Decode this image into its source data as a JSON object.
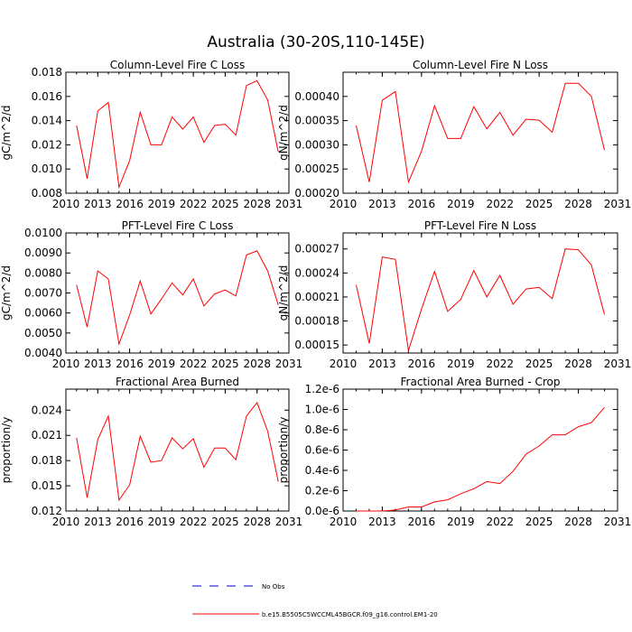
{
  "title": "Australia (30-20S,110-145E)",
  "colors": {
    "series": "#ff0000",
    "obs": "#0000cc",
    "axis": "#000000"
  },
  "legend": {
    "position": "bottom-center",
    "items": [
      {
        "label": "No Obs",
        "style": "dashed",
        "color": "#0000cc"
      },
      {
        "label": "b.e15.B5505C5WCCML45BGCR.f09_g16.control.EM1-20",
        "style": "solid",
        "color": "#ff0000"
      }
    ]
  },
  "chart_data": [
    {
      "type": "line",
      "title": "Column-Level Fire C Loss",
      "ylabel": "gC/m^2/d",
      "xlim": [
        2010,
        2031
      ],
      "ylim": [
        0.008,
        0.018
      ],
      "xticks": [
        2010,
        2013,
        2016,
        2019,
        2022,
        2025,
        2028,
        2031
      ],
      "yticks": [
        0.008,
        0.01,
        0.012,
        0.014,
        0.016,
        0.018
      ],
      "ytick_labels": [
        "0.008",
        "0.010",
        "0.012",
        "0.014",
        "0.016",
        "0.018"
      ],
      "x": [
        2011,
        2012,
        2013,
        2014,
        2015,
        2016,
        2017,
        2018,
        2019,
        2020,
        2021,
        2022,
        2023,
        2024,
        2025,
        2026,
        2027,
        2028,
        2029,
        2030
      ],
      "series": [
        {
          "name": "b.e15.B5505C5WCCML45BGCR.f09_g16.control.EM1-20",
          "values": [
            0.0136,
            0.0092,
            0.0148,
            0.0155,
            0.0085,
            0.0107,
            0.0147,
            0.012,
            0.012,
            0.0143,
            0.0133,
            0.0143,
            0.0122,
            0.0136,
            0.0137,
            0.0128,
            0.0169,
            0.0173,
            0.0157,
            0.0114
          ]
        }
      ]
    },
    {
      "type": "line",
      "title": "Column-Level Fire N Loss",
      "ylabel": "gN/m^2/d",
      "xlim": [
        2010,
        2031
      ],
      "ylim": [
        0.0002,
        0.00045
      ],
      "xticks": [
        2010,
        2013,
        2016,
        2019,
        2022,
        2025,
        2028,
        2031
      ],
      "yticks": [
        0.0002,
        0.00025,
        0.0003,
        0.00035,
        0.0004
      ],
      "ytick_labels": [
        "0.00020",
        "0.00025",
        "0.00030",
        "0.00035",
        "0.00040"
      ],
      "x": [
        2011,
        2012,
        2013,
        2014,
        2015,
        2016,
        2017,
        2018,
        2019,
        2020,
        2021,
        2022,
        2023,
        2024,
        2025,
        2026,
        2027,
        2028,
        2029,
        2030
      ],
      "series": [
        {
          "name": "b.e15.B5505C5WCCML45BGCR.f09_g16.control.EM1-20",
          "values": [
            0.00034,
            0.000223,
            0.000392,
            0.00041,
            0.000223,
            0.000287,
            0.000381,
            0.000313,
            0.000313,
            0.000379,
            0.000333,
            0.000367,
            0.00032,
            0.000353,
            0.000351,
            0.000326,
            0.000427,
            0.000427,
            0.0004,
            0.000289
          ]
        }
      ]
    },
    {
      "type": "line",
      "title": "PFT-Level Fire C Loss",
      "ylabel": "gC/m^2/d",
      "xlim": [
        2010,
        2031
      ],
      "ylim": [
        0.004,
        0.01
      ],
      "xticks": [
        2010,
        2013,
        2016,
        2019,
        2022,
        2025,
        2028,
        2031
      ],
      "yticks": [
        0.004,
        0.005,
        0.006,
        0.007,
        0.008,
        0.009,
        0.01
      ],
      "ytick_labels": [
        "0.0040",
        "0.0050",
        "0.0060",
        "0.0070",
        "0.0080",
        "0.0090",
        "0.0100"
      ],
      "x": [
        2011,
        2012,
        2013,
        2014,
        2015,
        2016,
        2017,
        2018,
        2019,
        2020,
        2021,
        2022,
        2023,
        2024,
        2025,
        2026,
        2027,
        2028,
        2029,
        2030
      ],
      "series": [
        {
          "name": "b.e15.B5505C5WCCML45BGCR.f09_g16.control.EM1-20",
          "values": [
            0.0074,
            0.0053,
            0.0081,
            0.0077,
            0.00445,
            0.0059,
            0.0076,
            0.00595,
            0.0067,
            0.0075,
            0.0069,
            0.0077,
            0.00635,
            0.00695,
            0.00715,
            0.00685,
            0.0089,
            0.0091,
            0.0081,
            0.0064
          ]
        }
      ]
    },
    {
      "type": "line",
      "title": "PFT-Level Fire N Loss",
      "ylabel": "gN/m^2/d",
      "xlim": [
        2010,
        2031
      ],
      "ylim": [
        0.00014,
        0.00029
      ],
      "xticks": [
        2010,
        2013,
        2016,
        2019,
        2022,
        2025,
        2028,
        2031
      ],
      "yticks": [
        0.00015,
        0.00018,
        0.00021,
        0.00024,
        0.00027
      ],
      "ytick_labels": [
        "0.00015",
        "0.00018",
        "0.00021",
        "0.00024",
        "0.00027"
      ],
      "x": [
        2011,
        2012,
        2013,
        2014,
        2015,
        2016,
        2017,
        2018,
        2019,
        2020,
        2021,
        2022,
        2023,
        2024,
        2025,
        2026,
        2027,
        2028,
        2029,
        2030
      ],
      "series": [
        {
          "name": "b.e15.B5505C5WCCML45BGCR.f09_g16.control.EM1-20",
          "values": [
            0.000225,
            0.000152,
            0.00026,
            0.000257,
            0.000143,
            0.000195,
            0.000242,
            0.000192,
            0.000207,
            0.000243,
            0.00021,
            0.000237,
            0.000201,
            0.00022,
            0.000222,
            0.000208,
            0.00027,
            0.000269,
            0.00025,
            0.000188
          ]
        }
      ]
    },
    {
      "type": "line",
      "title": "Fractional Area Burned",
      "ylabel": "proportion/y",
      "xlim": [
        2010,
        2031
      ],
      "ylim": [
        0.012,
        0.0265
      ],
      "xticks": [
        2010,
        2013,
        2016,
        2019,
        2022,
        2025,
        2028,
        2031
      ],
      "yticks": [
        0.012,
        0.015,
        0.018,
        0.021,
        0.024
      ],
      "ytick_labels": [
        "0.012",
        "0.015",
        "0.018",
        "0.021",
        "0.024"
      ],
      "x": [
        2011,
        2012,
        2013,
        2014,
        2015,
        2016,
        2017,
        2018,
        2019,
        2020,
        2021,
        2022,
        2023,
        2024,
        2025,
        2026,
        2027,
        2028,
        2029,
        2030
      ],
      "series": [
        {
          "name": "b.e15.B5505C5WCCML45BGCR.f09_g16.control.EM1-20",
          "values": [
            0.0207,
            0.0136,
            0.0205,
            0.0233,
            0.0133,
            0.0151,
            0.0209,
            0.0178,
            0.018,
            0.0207,
            0.0194,
            0.0206,
            0.0172,
            0.0195,
            0.0195,
            0.0181,
            0.0233,
            0.0249,
            0.0215,
            0.0155
          ]
        }
      ]
    },
    {
      "type": "line",
      "title": "Fractional Area Burned - Crop",
      "ylabel": "proportion/y",
      "xlim": [
        2010,
        2031
      ],
      "ylim": [
        0,
        1.2e-06
      ],
      "xticks": [
        2010,
        2013,
        2016,
        2019,
        2022,
        2025,
        2028,
        2031
      ],
      "yticks": [
        0,
        2e-07,
        4e-07,
        6e-07,
        8e-07,
        1e-06,
        1.2e-06
      ],
      "ytick_labels": [
        "0.0e-6",
        "0.2e-6",
        "0.4e-6",
        "0.6e-6",
        "0.8e-6",
        "1.0e-6",
        "1.2e-6"
      ],
      "x": [
        2011,
        2012,
        2013,
        2014,
        2015,
        2016,
        2017,
        2018,
        2019,
        2020,
        2021,
        2022,
        2023,
        2024,
        2025,
        2026,
        2027,
        2028,
        2029,
        2030
      ],
      "series": [
        {
          "name": "b.e15.B5505C5WCCML45BGCR.f09_g16.control.EM1-20",
          "values": [
            0.0,
            0.0,
            0.0,
            1e-08,
            4e-08,
            4e-08,
            9e-08,
            1.1e-07,
            1.7e-07,
            2.2e-07,
            2.9e-07,
            2.7e-07,
            3.9e-07,
            5.6e-07,
            6.4e-07,
            7.5e-07,
            7.5e-07,
            8.3e-07,
            8.7e-07,
            1.02e-06
          ]
        }
      ]
    }
  ]
}
